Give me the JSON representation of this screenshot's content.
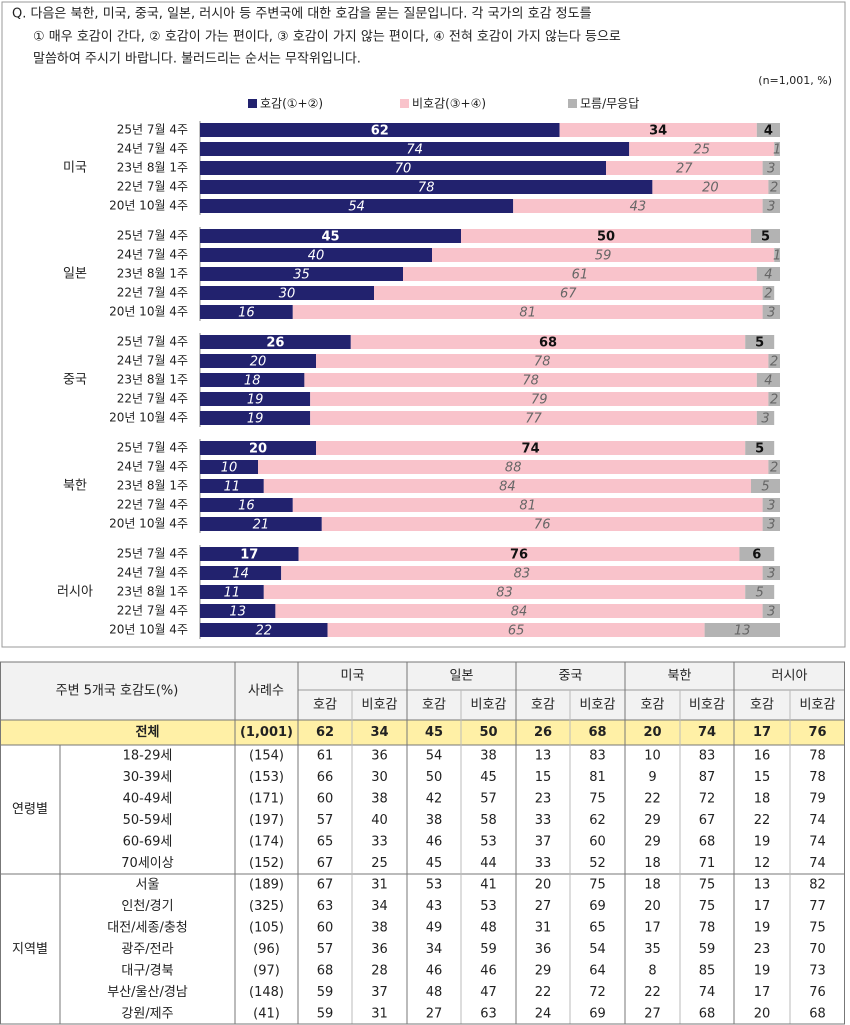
{
  "question": [
    "Q. 다음은 북한, 미국, 중국, 일본, 러시아 등 주변국에 대한 호감을 묻는 질문입니다. 각 국가의 호감 정도를",
    "① 매우 호감이 간다, ② 호감이 가는 편이다, ③ 호감이 가지 않는 편이다, ④ 전혀 호감이 가지 않는다 등으로",
    "말씀하여 주시기 바랍니다. 불러드리는 순서는 무작위입니다."
  ],
  "note": "(n=1,001,  %)",
  "chart_data": {
    "type": "stacked-barh",
    "xlim": [
      0,
      100
    ],
    "groups": [
      "미국",
      "일본",
      "중국",
      "북한",
      "러시아"
    ],
    "categories": [
      "25년 7월 4주",
      "24년 7월 4주",
      "23년 8월 1주",
      "22년 7월 4주",
      "20년 10월 4주",
      "25년 7월 4주",
      "24년 7월 4주",
      "23년 8월 1주",
      "22년 7월 4주",
      "20년 10월 4주",
      "25년 7월 4주",
      "24년 7월 4주",
      "23년 8월 1주",
      "22년 7월 4주",
      "20년 10월 4주",
      "25년 7월 4주",
      "24년 7월 4주",
      "23년 8월 1주",
      "22년 7월 4주",
      "20년 10월 4주",
      "25년 7월 4주",
      "24년 7월 4주",
      "23년 8월 1주",
      "22년 7월 4주",
      "20년 10월 4주"
    ],
    "series": [
      {
        "name": "호감(①+②)",
        "color": "#22226e",
        "values": [
          62,
          74,
          70,
          78,
          54,
          45,
          40,
          35,
          30,
          16,
          26,
          20,
          18,
          19,
          19,
          20,
          10,
          11,
          16,
          21,
          17,
          14,
          11,
          13,
          22
        ]
      },
      {
        "name": "비호감(③+④)",
        "color": "#f9c3cb",
        "values": [
          34,
          25,
          27,
          20,
          43,
          50,
          59,
          61,
          67,
          81,
          68,
          78,
          78,
          79,
          77,
          74,
          88,
          84,
          81,
          76,
          76,
          83,
          83,
          84,
          65
        ]
      },
      {
        "name": "모름/무응답",
        "color": "#b3b3b3",
        "values": [
          4,
          1,
          3,
          2,
          3,
          5,
          1,
          4,
          2,
          3,
          5,
          2,
          4,
          2,
          3,
          5,
          2,
          5,
          3,
          3,
          6,
          3,
          5,
          3,
          13
        ]
      }
    ]
  },
  "table": {
    "title": "주변 5개국 호감도(%)",
    "n_header": "사례수",
    "countries": [
      "미국",
      "일본",
      "중국",
      "북한",
      "러시아"
    ],
    "subheaders": [
      "호감",
      "비호감"
    ],
    "total": {
      "label": "전체",
      "n": "(1,001)",
      "values": [
        62,
        34,
        45,
        50,
        26,
        68,
        20,
        74,
        17,
        76
      ]
    },
    "sections": [
      {
        "name": "연령별",
        "rows": [
          {
            "label": "18-29세",
            "n": "(154)",
            "values": [
              61,
              36,
              54,
              38,
              13,
              83,
              10,
              83,
              16,
              78
            ]
          },
          {
            "label": "30-39세",
            "n": "(153)",
            "values": [
              66,
              30,
              50,
              45,
              15,
              81,
              9,
              87,
              15,
              78
            ]
          },
          {
            "label": "40-49세",
            "n": "(171)",
            "values": [
              60,
              38,
              42,
              57,
              23,
              75,
              22,
              72,
              18,
              79
            ]
          },
          {
            "label": "50-59세",
            "n": "(197)",
            "values": [
              57,
              40,
              38,
              58,
              33,
              62,
              29,
              67,
              22,
              74
            ]
          },
          {
            "label": "60-69세",
            "n": "(174)",
            "values": [
              65,
              33,
              46,
              53,
              37,
              60,
              29,
              68,
              19,
              74
            ]
          },
          {
            "label": "70세이상",
            "n": "(152)",
            "values": [
              67,
              25,
              45,
              44,
              33,
              52,
              18,
              71,
              12,
              74
            ]
          }
        ]
      },
      {
        "name": "지역별",
        "rows": [
          {
            "label": "서울",
            "n": "(189)",
            "values": [
              67,
              31,
              53,
              41,
              20,
              75,
              18,
              75,
              13,
              82
            ]
          },
          {
            "label": "인천/경기",
            "n": "(325)",
            "values": [
              63,
              34,
              43,
              53,
              27,
              69,
              20,
              75,
              17,
              77
            ]
          },
          {
            "label": "대전/세종/충청",
            "n": "(105)",
            "values": [
              60,
              38,
              49,
              48,
              31,
              65,
              17,
              78,
              19,
              75
            ]
          },
          {
            "label": "광주/전라",
            "n": "(96)",
            "values": [
              57,
              36,
              34,
              59,
              36,
              54,
              35,
              59,
              23,
              70
            ]
          },
          {
            "label": "대구/경북",
            "n": "(97)",
            "values": [
              68,
              28,
              46,
              46,
              29,
              64,
              8,
              85,
              19,
              73
            ]
          },
          {
            "label": "부산/울산/경남",
            "n": "(148)",
            "values": [
              59,
              37,
              48,
              47,
              22,
              72,
              22,
              74,
              17,
              76
            ]
          },
          {
            "label": "강원/제주",
            "n": "(41)",
            "values": [
              59,
              31,
              27,
              63,
              24,
              69,
              27,
              68,
              20,
              68
            ]
          }
        ]
      }
    ]
  }
}
